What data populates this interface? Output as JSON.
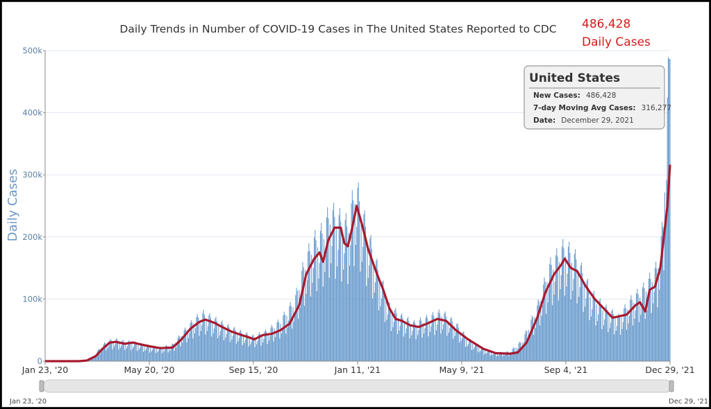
{
  "chart_data": {
    "type": "bar",
    "title": "Daily Trends in Number of COVID-19 Cases in The United States Reported to CDC",
    "ylabel": "Daily Cases",
    "xlabel": "",
    "ylim": [
      0,
      500000
    ],
    "y_ticks": [
      "0",
      "100k",
      "200k",
      "300k",
      "400k",
      "500k"
    ],
    "x_ticks": [
      "Jan 23, '20",
      "May 20, '20",
      "Sep 15, '20",
      "Jan 11, '21",
      "May 9, '21",
      "Sep 4, '21",
      "Dec 29, '21"
    ],
    "x_start": "2020-01-23",
    "x_end": "2021-12-29",
    "grid": true,
    "series": [
      {
        "name": "New Cases",
        "type": "bar",
        "color": "#6a9bcd",
        "weekly_points": [
          [
            "2020-01-23",
            0
          ],
          [
            "2020-03-01",
            0
          ],
          [
            "2020-03-10",
            1000
          ],
          [
            "2020-03-17",
            5000
          ],
          [
            "2020-03-24",
            18000
          ],
          [
            "2020-04-01",
            28000
          ],
          [
            "2020-04-10",
            32000
          ],
          [
            "2020-04-20",
            29000
          ],
          [
            "2020-05-01",
            28000
          ],
          [
            "2020-05-10",
            25000
          ],
          [
            "2020-05-20",
            22000
          ],
          [
            "2020-06-01",
            20000
          ],
          [
            "2020-06-15",
            24000
          ],
          [
            "2020-06-25",
            40000
          ],
          [
            "2020-07-10",
            62000
          ],
          [
            "2020-07-20",
            70000
          ],
          [
            "2020-08-01",
            62000
          ],
          [
            "2020-08-15",
            52000
          ],
          [
            "2020-09-01",
            42000
          ],
          [
            "2020-09-15",
            36000
          ],
          [
            "2020-10-01",
            45000
          ],
          [
            "2020-10-15",
            60000
          ],
          [
            "2020-10-31",
            90000
          ],
          [
            "2020-11-10",
            140000
          ],
          [
            "2020-11-20",
            175000
          ],
          [
            "2020-12-01",
            190000
          ],
          [
            "2020-12-10",
            220000
          ],
          [
            "2020-12-20",
            210000
          ],
          [
            "2020-12-30",
            200000
          ],
          [
            "2021-01-08",
            260000
          ],
          [
            "2021-01-20",
            195000
          ],
          [
            "2021-02-01",
            140000
          ],
          [
            "2021-02-15",
            80000
          ],
          [
            "2021-03-01",
            65000
          ],
          [
            "2021-03-15",
            56000
          ],
          [
            "2021-04-01",
            65000
          ],
          [
            "2021-04-15",
            72000
          ],
          [
            "2021-05-01",
            55000
          ],
          [
            "2021-05-15",
            32000
          ],
          [
            "2021-06-01",
            18000
          ],
          [
            "2021-06-15",
            12000
          ],
          [
            "2021-07-01",
            14000
          ],
          [
            "2021-07-15",
            30000
          ],
          [
            "2021-08-01",
            80000
          ],
          [
            "2021-08-15",
            140000
          ],
          [
            "2021-09-01",
            170000
          ],
          [
            "2021-09-15",
            150000
          ],
          [
            "2021-10-01",
            100000
          ],
          [
            "2021-10-15",
            80000
          ],
          [
            "2021-11-01",
            65000
          ],
          [
            "2021-11-15",
            90000
          ],
          [
            "2021-12-01",
            110000
          ],
          [
            "2021-12-15",
            140000
          ],
          [
            "2021-12-21",
            200000
          ],
          [
            "2021-12-29",
            486428
          ]
        ]
      },
      {
        "name": "7-day Moving Avg Cases",
        "type": "line",
        "color": "#a8192f",
        "points": [
          [
            "2020-01-23",
            0
          ],
          [
            "2020-03-01",
            0
          ],
          [
            "2020-03-10",
            1000
          ],
          [
            "2020-03-20",
            8000
          ],
          [
            "2020-03-28",
            20000
          ],
          [
            "2020-04-05",
            30000
          ],
          [
            "2020-04-12",
            31000
          ],
          [
            "2020-04-22",
            28000
          ],
          [
            "2020-05-01",
            30000
          ],
          [
            "2020-05-10",
            27000
          ],
          [
            "2020-05-20",
            24000
          ],
          [
            "2020-06-01",
            21000
          ],
          [
            "2020-06-15",
            22000
          ],
          [
            "2020-06-25",
            35000
          ],
          [
            "2020-07-05",
            52000
          ],
          [
            "2020-07-15",
            63000
          ],
          [
            "2020-07-22",
            67000
          ],
          [
            "2020-08-01",
            62000
          ],
          [
            "2020-08-10",
            55000
          ],
          [
            "2020-08-20",
            48000
          ],
          [
            "2020-09-01",
            42000
          ],
          [
            "2020-09-10",
            38000
          ],
          [
            "2020-09-15",
            35000
          ],
          [
            "2020-09-25",
            42000
          ],
          [
            "2020-10-05",
            44000
          ],
          [
            "2020-10-15",
            50000
          ],
          [
            "2020-10-25",
            60000
          ],
          [
            "2020-11-05",
            90000
          ],
          [
            "2020-11-13",
            140000
          ],
          [
            "2020-11-22",
            165000
          ],
          [
            "2020-11-28",
            175000
          ],
          [
            "2020-12-02",
            160000
          ],
          [
            "2020-12-08",
            195000
          ],
          [
            "2020-12-15",
            215000
          ],
          [
            "2020-12-22",
            215000
          ],
          [
            "2020-12-26",
            190000
          ],
          [
            "2020-12-30",
            185000
          ],
          [
            "2021-01-04",
            215000
          ],
          [
            "2021-01-09",
            250000
          ],
          [
            "2021-01-15",
            220000
          ],
          [
            "2021-01-22",
            180000
          ],
          [
            "2021-02-01",
            140000
          ],
          [
            "2021-02-08",
            115000
          ],
          [
            "2021-02-15",
            85000
          ],
          [
            "2021-02-22",
            68000
          ],
          [
            "2021-03-01",
            65000
          ],
          [
            "2021-03-10",
            58000
          ],
          [
            "2021-03-20",
            55000
          ],
          [
            "2021-04-01",
            62000
          ],
          [
            "2021-04-10",
            68000
          ],
          [
            "2021-04-20",
            65000
          ],
          [
            "2021-05-01",
            50000
          ],
          [
            "2021-05-15",
            35000
          ],
          [
            "2021-06-01",
            20000
          ],
          [
            "2021-06-15",
            13000
          ],
          [
            "2021-07-01",
            12000
          ],
          [
            "2021-07-10",
            14000
          ],
          [
            "2021-07-20",
            30000
          ],
          [
            "2021-08-01",
            70000
          ],
          [
            "2021-08-10",
            110000
          ],
          [
            "2021-08-20",
            140000
          ],
          [
            "2021-08-28",
            155000
          ],
          [
            "2021-09-01",
            165000
          ],
          [
            "2021-09-08",
            150000
          ],
          [
            "2021-09-15",
            145000
          ],
          [
            "2021-09-25",
            120000
          ],
          [
            "2021-10-05",
            100000
          ],
          [
            "2021-10-15",
            85000
          ],
          [
            "2021-10-25",
            70000
          ],
          [
            "2021-11-01",
            72000
          ],
          [
            "2021-11-10",
            75000
          ],
          [
            "2021-11-20",
            90000
          ],
          [
            "2021-11-25",
            95000
          ],
          [
            "2021-12-01",
            80000
          ],
          [
            "2021-12-06",
            115000
          ],
          [
            "2021-12-12",
            120000
          ],
          [
            "2021-12-18",
            150000
          ],
          [
            "2021-12-22",
            200000
          ],
          [
            "2021-12-26",
            250000
          ],
          [
            "2021-12-29",
            316277
          ]
        ]
      }
    ],
    "annotation": {
      "value": "486,428",
      "label": "Daily Cases",
      "color": "#d11c1c"
    },
    "tooltip": {
      "title": "United States",
      "new_cases_key": "New Cases:",
      "new_cases_value": "486,428",
      "avg_key": "7-day Moving Avg Cases:",
      "avg_value": "316,277",
      "date_key": "Date:",
      "date_value": "December 29, 2021"
    },
    "navigator": {
      "start_label": "Jan 23, '20",
      "end_label": "Dec 29, '21"
    }
  }
}
